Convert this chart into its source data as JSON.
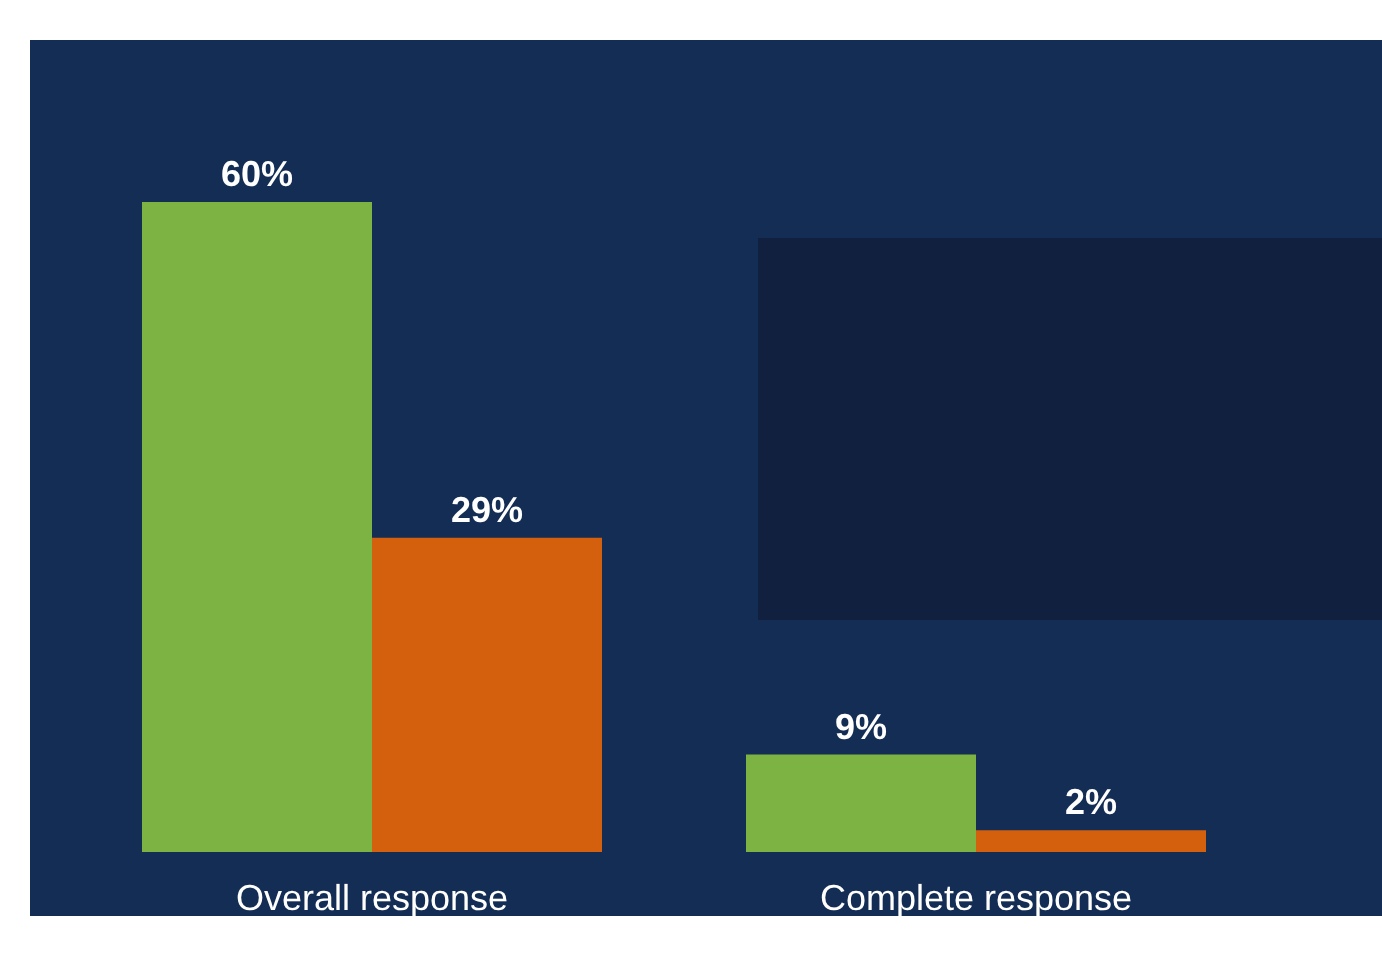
{
  "chart_data": {
    "type": "bar",
    "categories": [
      "Overall response",
      "Complete response"
    ],
    "series": [
      {
        "color": "#7cb342",
        "values": [
          60,
          9
        ],
        "value_labels": [
          "60%",
          "9%"
        ]
      },
      {
        "color": "#d4600e",
        "values": [
          29,
          2
        ],
        "value_labels": [
          "29%",
          "2%"
        ]
      }
    ],
    "grid": false
  }
}
